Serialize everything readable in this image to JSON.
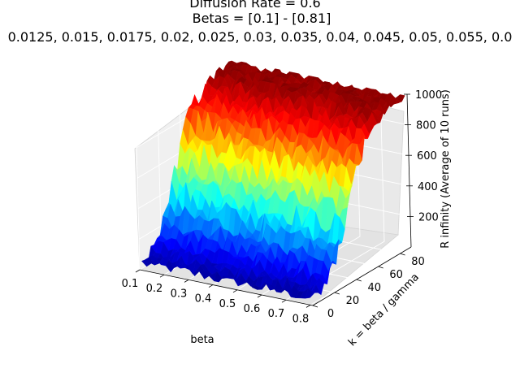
{
  "chart_data": {
    "type": "surface",
    "title_lines": [
      "Diffusion Rate = 0.6",
      "Betas = [0.1] - [0.81]",
      "0.0125, 0.015, 0.0175, 0.02, 0.025, 0.03, 0.035, 0.04, 0.045, 0.05, 0.055, 0.0"
    ],
    "xlabel": "beta",
    "ylabel": "k = beta / gamma",
    "zlabel": "R infinity (Average of 10 runs)",
    "x_ticks": [
      "0.1",
      "0.2",
      "0.3",
      "0.4",
      "0.5",
      "0.6",
      "0.7",
      "0.8"
    ],
    "y_ticks": [
      "0",
      "20",
      "40",
      "60",
      "80"
    ],
    "z_ticks": [
      "200",
      "400",
      "600",
      "800",
      "1000"
    ],
    "xlim": [
      0.1,
      0.81
    ],
    "ylim": [
      0,
      90
    ],
    "zlim": [
      0,
      1000
    ],
    "colormap": "jet",
    "grid": true,
    "description_points": [
      {
        "beta": 0.1,
        "k": 2,
        "R": 30
      },
      {
        "beta": 0.81,
        "k": 2,
        "R": 60
      },
      {
        "beta": 0.1,
        "k": 88,
        "R": 990
      },
      {
        "beta": 0.81,
        "k": 88,
        "R": 1000
      }
    ]
  }
}
